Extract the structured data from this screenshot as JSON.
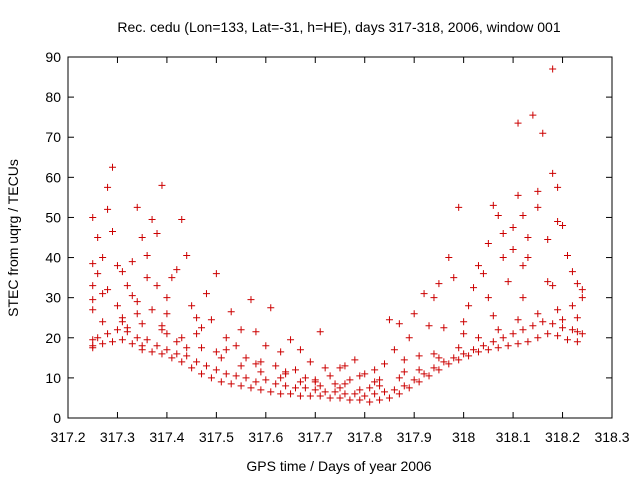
{
  "chart_data": {
    "type": "scatter",
    "title": "Rec. cedu (Lon=133, Lat=-31, h=HE), days 317-318, 2006, window 001",
    "xlabel": "GPS time / Days of year 2006",
    "ylabel": "STEC from uqrg / TECUs",
    "xlim": [
      317.2,
      318.3
    ],
    "ylim": [
      0,
      90
    ],
    "xticks": [
      317.2,
      317.3,
      317.4,
      317.5,
      317.6,
      317.7,
      317.8,
      317.9,
      318.0,
      318.1,
      318.2,
      318.3
    ],
    "xtick_labels": [
      "317.2",
      "317.3",
      "317.4",
      "317.5",
      "317.6",
      "317.7",
      "317.8",
      "317.9",
      "318",
      "318.1",
      "318.2",
      "318.3"
    ],
    "yticks": [
      0,
      10,
      20,
      30,
      40,
      50,
      60,
      70,
      80,
      90
    ],
    "ytick_labels": [
      "0",
      "10",
      "20",
      "30",
      "40",
      "50",
      "60",
      "70",
      "80",
      "90"
    ],
    "grid": false,
    "legend": "none",
    "marker": "plus",
    "color": "#cc0000",
    "series": [
      {
        "x": [
          317.25,
          317.25,
          317.25,
          317.25,
          317.25,
          317.25,
          317.25,
          317.26,
          317.26,
          317.27,
          317.27,
          317.28,
          317.28,
          317.29,
          317.29,
          317.3,
          317.3,
          317.31,
          317.31,
          317.32,
          317.32,
          317.33,
          317.33,
          317.34,
          317.34,
          317.35,
          317.35,
          317.36,
          317.36,
          317.37,
          317.37,
          317.38,
          317.38,
          317.39,
          317.39,
          317.4,
          317.4,
          317.41,
          317.42,
          317.42,
          317.43,
          317.44,
          317.44,
          317.45,
          317.46,
          317.47,
          317.48,
          317.49,
          317.5,
          317.5,
          317.52,
          317.53,
          317.54,
          317.55,
          317.56,
          317.57,
          317.58,
          317.59,
          317.6,
          317.61,
          317.62,
          317.63,
          317.64,
          317.65,
          317.66,
          317.67,
          317.68,
          317.69,
          317.7,
          317.71,
          317.72,
          317.73,
          317.74,
          317.75,
          317.76,
          317.77,
          317.78,
          317.79,
          317.8,
          317.81,
          317.82,
          317.83,
          317.84,
          317.85,
          317.86,
          317.87,
          317.88,
          317.89,
          317.9,
          317.91,
          317.92,
          317.93,
          317.94,
          317.95,
          317.96,
          317.97,
          317.98,
          317.99,
          318.0,
          318.01,
          318.02,
          318.03,
          318.04,
          318.05,
          318.05,
          318.06,
          318.07,
          318.08,
          318.08,
          318.09,
          318.1,
          318.1,
          318.11,
          318.11,
          318.12,
          318.12,
          318.13,
          318.13,
          318.14,
          318.15,
          318.15,
          318.16,
          318.17,
          318.17,
          318.18,
          318.18,
          318.19,
          318.19,
          318.2,
          318.2,
          318.21,
          318.22,
          318.22,
          318.23,
          318.23,
          318.24
        ],
        "y": [
          50.0,
          38.5,
          33.0,
          29.5,
          27.0,
          19.5,
          17.5,
          45.0,
          36.0,
          40.0,
          31.0,
          57.5,
          52.0,
          62.5,
          46.5,
          38.0,
          28.0,
          36.5,
          24.0,
          33.0,
          22.5,
          39.0,
          30.5,
          52.5,
          26.0,
          45.0,
          18.0,
          40.5,
          35.0,
          49.5,
          27.0,
          46.0,
          33.0,
          58.0,
          23.0,
          30.0,
          21.0,
          35.0,
          37.0,
          19.0,
          49.5,
          40.5,
          17.5,
          28.0,
          25.0,
          22.5,
          31.0,
          24.5,
          36.0,
          16.5,
          20.0,
          26.5,
          18.0,
          22.0,
          15.0,
          29.5,
          21.5,
          14.0,
          18.0,
          27.5,
          13.0,
          16.5,
          11.5,
          19.5,
          12.0,
          17.0,
          10.0,
          14.0,
          9.0,
          21.5,
          12.5,
          10.5,
          8.5,
          12.5,
          13.0,
          9.5,
          14.5,
          10.5,
          11.0,
          7.5,
          12.0,
          9.5,
          13.5,
          24.5,
          17.0,
          23.5,
          14.5,
          20.0,
          26.0,
          15.5,
          31.0,
          23.0,
          30.0,
          33.5,
          22.5,
          40.0,
          35.0,
          52.5,
          24.0,
          28.0,
          32.5,
          38.0,
          36.0,
          43.5,
          30.0,
          53.0,
          50.5,
          46.0,
          40.0,
          34.0,
          47.5,
          42.0,
          55.5,
          73.5,
          50.5,
          38.0,
          45.0,
          40.0,
          75.5,
          56.5,
          52.5,
          71.0,
          44.5,
          34.0,
          87.0,
          61.0,
          57.5,
          49.0,
          48.0,
          24.5,
          40.5,
          36.5,
          28.0,
          33.5,
          21.5,
          32.0
        ]
      },
      {
        "x": [
          317.25,
          317.27,
          317.29,
          317.31,
          317.33,
          317.35,
          317.37,
          317.39,
          317.41,
          317.43,
          317.45,
          317.47,
          317.49,
          317.51,
          317.53,
          317.55,
          317.57,
          317.59,
          317.61,
          317.63,
          317.65,
          317.67,
          317.69,
          317.71,
          317.73,
          317.75,
          317.77,
          317.79,
          317.81,
          317.83,
          317.85,
          317.87,
          317.89,
          317.91,
          317.93,
          317.95,
          317.97,
          317.99,
          318.01,
          318.03,
          318.05,
          318.07,
          318.09,
          318.11,
          318.13,
          318.15,
          318.17,
          318.19,
          318.21,
          318.23
        ],
        "y": [
          18.0,
          18.5,
          19.0,
          19.5,
          18.5,
          17.0,
          16.5,
          16.0,
          15.0,
          14.0,
          12.5,
          11.0,
          10.0,
          9.0,
          8.5,
          8.0,
          7.5,
          7.0,
          6.5,
          6.0,
          6.0,
          5.5,
          5.5,
          5.5,
          5.0,
          5.0,
          4.5,
          4.5,
          4.0,
          4.5,
          5.0,
          6.0,
          7.5,
          9.0,
          10.5,
          12.0,
          13.5,
          14.5,
          15.5,
          16.5,
          17.0,
          17.5,
          18.0,
          18.5,
          19.0,
          20.0,
          21.0,
          20.5,
          19.5,
          19.0
        ]
      },
      {
        "x": [
          317.26,
          317.28,
          317.3,
          317.32,
          317.34,
          317.36,
          317.38,
          317.4,
          317.42,
          317.44,
          317.46,
          317.48,
          317.5,
          317.52,
          317.54,
          317.56,
          317.58,
          317.6,
          317.62,
          317.64,
          317.66,
          317.68,
          317.7,
          317.72,
          317.74,
          317.76,
          317.78,
          317.8,
          317.82,
          317.84,
          317.86,
          317.88,
          317.9,
          317.92,
          317.94,
          317.96,
          317.98,
          318.0,
          318.02,
          318.04,
          318.06,
          318.08,
          318.1,
          318.12,
          318.14,
          318.16,
          318.18,
          318.2,
          318.22,
          318.24
        ],
        "y": [
          20.0,
          21.0,
          22.0,
          21.5,
          20.0,
          19.5,
          18.0,
          17.0,
          16.0,
          15.5,
          14.0,
          13.0,
          12.0,
          11.0,
          10.5,
          10.0,
          9.0,
          9.5,
          8.5,
          8.0,
          7.5,
          7.5,
          7.0,
          6.5,
          6.5,
          6.0,
          6.0,
          5.5,
          6.0,
          6.5,
          7.0,
          8.0,
          9.5,
          11.0,
          12.5,
          14.0,
          15.0,
          16.0,
          17.0,
          18.0,
          19.0,
          20.0,
          21.0,
          22.0,
          23.0,
          24.0,
          23.5,
          22.5,
          22.0,
          21.0
        ]
      },
      {
        "x": [
          317.27,
          317.31,
          317.35,
          317.39,
          317.43,
          317.47,
          317.51,
          317.55,
          317.59,
          317.63,
          317.67,
          317.71,
          317.75,
          317.79,
          317.83,
          317.87,
          317.91,
          317.95,
          317.99,
          318.03,
          318.07,
          318.11,
          318.15,
          318.19,
          318.23
        ],
        "y": [
          24.0,
          25.0,
          23.5,
          22.0,
          20.0,
          17.5,
          15.0,
          13.0,
          11.5,
          10.0,
          9.0,
          8.0,
          7.5,
          7.0,
          8.0,
          10.0,
          12.0,
          15.0,
          17.5,
          20.0,
          22.0,
          24.5,
          26.0,
          27.0,
          25.0
        ]
      },
      {
        "x": [
          317.28,
          317.34,
          317.4,
          317.46,
          317.52,
          317.58,
          317.64,
          317.7,
          317.76,
          317.82,
          317.88,
          317.94,
          318.0,
          318.06,
          318.12,
          318.18,
          318.24
        ],
        "y": [
          32.0,
          29.0,
          26.0,
          21.0,
          17.0,
          13.5,
          11.0,
          9.5,
          8.5,
          9.0,
          11.5,
          16.0,
          21.0,
          25.5,
          30.0,
          33.0,
          30.0
        ]
      }
    ]
  }
}
